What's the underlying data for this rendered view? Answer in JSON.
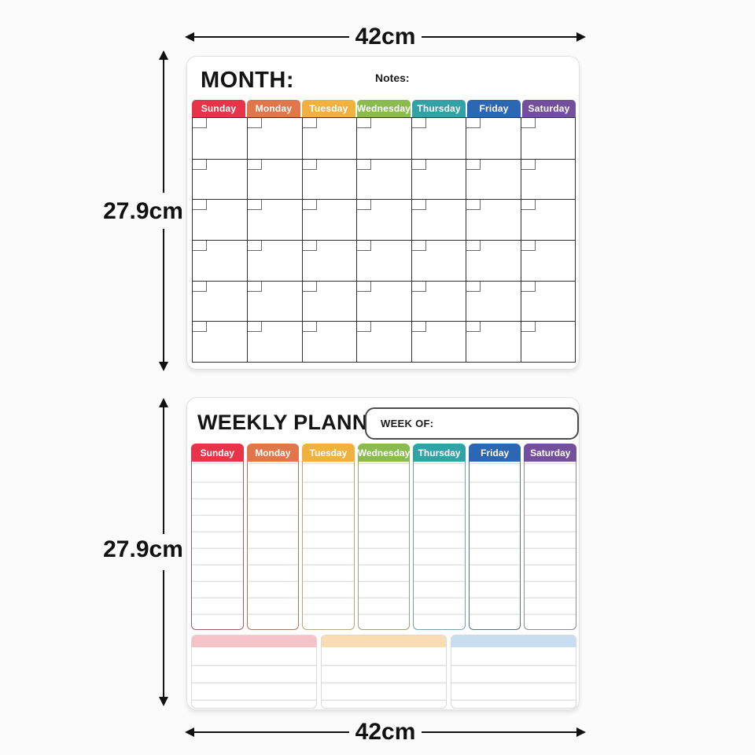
{
  "dimensions": {
    "top_width": "42cm",
    "bottom_width": "42cm",
    "monthly_height": "27.9cm",
    "weekly_height": "27.9cm"
  },
  "days": [
    {
      "label": "Sunday",
      "color": "#e73449",
      "muted_border": "#a05a67"
    },
    {
      "label": "Monday",
      "color": "#e1764a",
      "muted_border": "#a37a60"
    },
    {
      "label": "Tuesday",
      "color": "#f1b13f",
      "muted_border": "#b5a878"
    },
    {
      "label": "Wednesday",
      "color": "#8abc4d",
      "muted_border": "#97a47e"
    },
    {
      "label": "Thursday",
      "color": "#31a3a7",
      "muted_border": "#74a4a6"
    },
    {
      "label": "Friday",
      "color": "#2b67b2",
      "muted_border": "#5e7084"
    },
    {
      "label": "Saturday",
      "color": "#734f9d",
      "muted_border": "#90899b"
    }
  ],
  "monthly": {
    "title": "MONTH:",
    "notes_label": "Notes:",
    "weeks": 6
  },
  "weekly": {
    "title": "WEEKLY PLANNER",
    "week_of_label": "WEEK OF:",
    "note_boxes": [
      {
        "name": "notes-pink",
        "color": "#f5c2c8"
      },
      {
        "name": "notes-peach",
        "color": "#f9dcb2"
      },
      {
        "name": "notes-blue",
        "color": "#c8ddef"
      }
    ]
  }
}
